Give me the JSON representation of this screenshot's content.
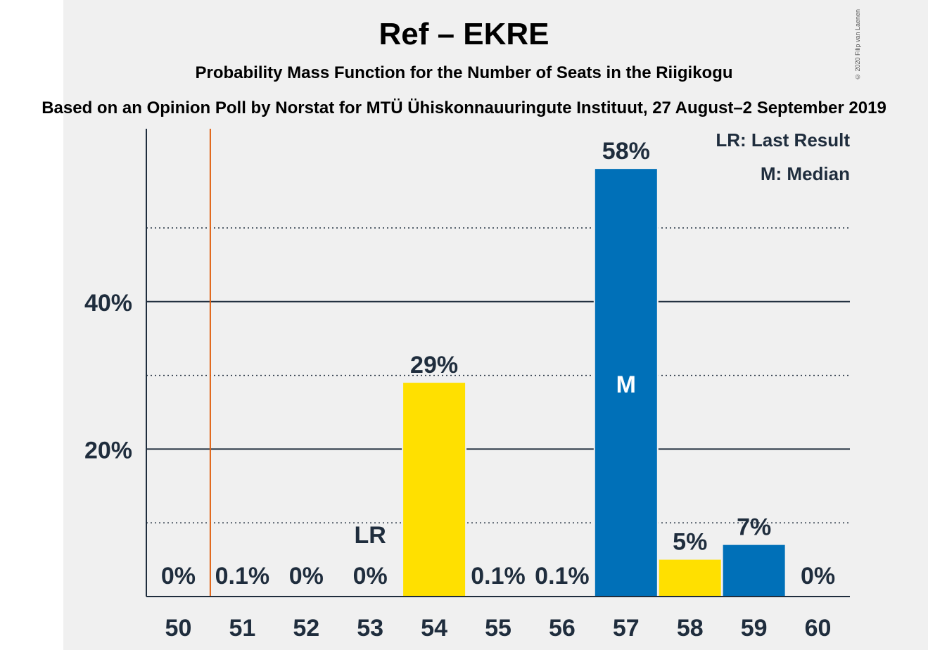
{
  "chart_data": {
    "type": "bar",
    "title": "Ref – EKRE",
    "subtitle": "Probability Mass Function for the Number of Seats in the Riigikogu",
    "source": "Based on an Opinion Poll by Norstat for MTÜ Ühiskonnauuringute Instituut, 27 August–2 September 2019",
    "copyright": "© 2020 Filip van Laenen",
    "categories": [
      "50",
      "51",
      "52",
      "53",
      "54",
      "55",
      "56",
      "57",
      "58",
      "59",
      "60"
    ],
    "values": [
      0,
      0.1,
      0,
      0,
      29,
      0.1,
      0.1,
      58,
      5,
      7,
      0
    ],
    "value_labels": [
      "0%",
      "0.1%",
      "0%",
      "0%",
      "29%",
      "0.1%",
      "0.1%",
      "58%",
      "5%",
      "7%",
      "0%"
    ],
    "bar_colors": [
      "#0070b8",
      "#0070b8",
      "#0070b8",
      "#0070b8",
      "#ffe000",
      "#0070b8",
      "#0070b8",
      "#0070b8",
      "#ffe000",
      "#0070b8",
      "#0070b8"
    ],
    "ylim": [
      0,
      63
    ],
    "y_ticks": [
      {
        "value": 20,
        "label": "20%"
      },
      {
        "value": 40,
        "label": "40%"
      }
    ],
    "minor_gridlines": [
      10,
      30,
      50
    ],
    "last_result": {
      "category": "51",
      "label": "LR",
      "label_on_category": "53",
      "line_color": "#e06010"
    },
    "median": {
      "category": "57",
      "label": "M"
    },
    "legend": {
      "lr": "LR: Last Result",
      "m": "M: Median",
      "placement": "top-right"
    }
  }
}
